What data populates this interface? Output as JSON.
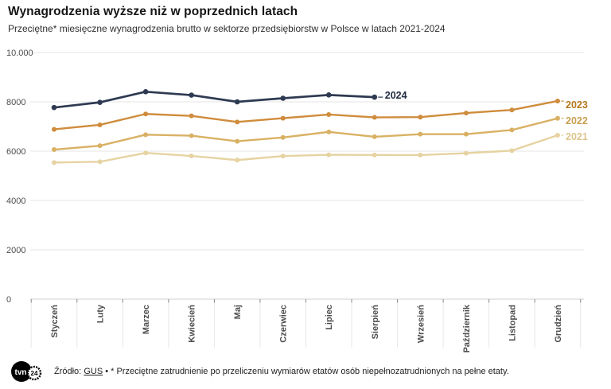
{
  "header": {
    "title": "Wynagrodzenia wyższe niż w poprzednich latach",
    "subtitle": "Przeciętne* miesięczne wynagrodzenia brutto w sektorze przedsiębiorstw w Polsce w latach 2021-2024"
  },
  "footer": {
    "logo": "tvn24-logo",
    "logo_main": "tvn",
    "logo_badge": "24",
    "source_prefix": "Źródło:",
    "source_link": "GUS",
    "note": "• * Przeciętne zatrudnienie po przeliczeniu wymiarów etatów osób niepełnozatrudnionych na pełne etaty."
  },
  "chart_data": {
    "type": "line",
    "title": "Wynagrodzenia wyższe niż w poprzednich latach",
    "subtitle": "Przeciętne* miesięczne wynagrodzenia brutto w sektorze przedsiębiorstw w Polsce w latach 2021-2024",
    "xlabel": "",
    "ylabel": "",
    "ylim": [
      0,
      10000
    ],
    "grid": true,
    "legend_position": "end-of-line-labels",
    "yticks": [
      0,
      2000,
      4000,
      6000,
      8000,
      10000
    ],
    "ytick_labels": [
      "0",
      "2000",
      "4000",
      "6000",
      "8000",
      "10.000"
    ],
    "categories": [
      "Styczeń",
      "Luty",
      "Marzec",
      "Kwiecień",
      "Maj",
      "Czerwiec",
      "Lipiec",
      "Sierpień",
      "Wrzesień",
      "Październik",
      "Listopad",
      "Grudzień"
    ],
    "series": [
      {
        "name": "2021",
        "color": "#e6d3a2",
        "label_color": "#dcc58c",
        "values": [
          5537,
          5569,
          5929,
          5806,
          5637,
          5802,
          5852,
          5844,
          5841,
          5917,
          6022,
          6644
        ]
      },
      {
        "name": "2022",
        "color": "#d9b164",
        "label_color": "#c9a050",
        "values": [
          6064,
          6220,
          6666,
          6627,
          6400,
          6555,
          6779,
          6583,
          6688,
          6688,
          6858,
          7330
        ]
      },
      {
        "name": "2023",
        "color": "#cf8c3c",
        "label_color": "#b5791f",
        "values": [
          6884,
          7066,
          7508,
          7431,
          7182,
          7335,
          7485,
          7369,
          7380,
          7545,
          7670,
          8033
        ]
      },
      {
        "name": "2024",
        "color": "#2e3a52",
        "label_color": "#202c42",
        "values": [
          7768,
          7979,
          8409,
          8272,
          8000,
          8145,
          8279,
          8190
        ]
      }
    ]
  },
  "colors": {
    "gridline": "#e4e4e4",
    "axis_line": "#d2d2d2",
    "tick_dark": "#8c8c8c",
    "tick_light": "#e7e7e7",
    "axis_label": "#4d4d4d"
  }
}
